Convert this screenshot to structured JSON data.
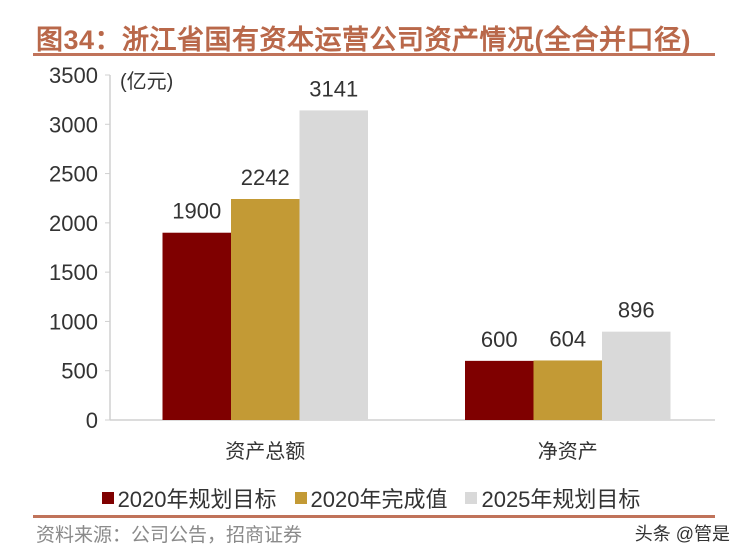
{
  "title": "图34：浙江省国有资本运营公司资产情况(全合并口径)",
  "source": "资料来源：公司公告，招商证券",
  "watermark": "头条 @管是",
  "chart_data": {
    "type": "bar",
    "title": "图34：浙江省国有资本运营公司资产情况(全合并口径)",
    "unit_label": "(亿元)",
    "categories": [
      "资产总额",
      "净资产"
    ],
    "series": [
      {
        "name": "2020年规划目标",
        "color": "#7F0000",
        "values": [
          1900,
          600
        ]
      },
      {
        "name": "2020年完成值",
        "color": "#C39A35",
        "values": [
          2242,
          604
        ]
      },
      {
        "name": "2025年规划目标",
        "color": "#D9D9D9",
        "values": [
          3141,
          896
        ]
      }
    ],
    "ylim": [
      0,
      3500
    ],
    "yticks": [
      0,
      500,
      1000,
      1500,
      2000,
      2500,
      3000,
      3500
    ],
    "grid": false,
    "legend_position": "bottom",
    "data_labels": true
  }
}
